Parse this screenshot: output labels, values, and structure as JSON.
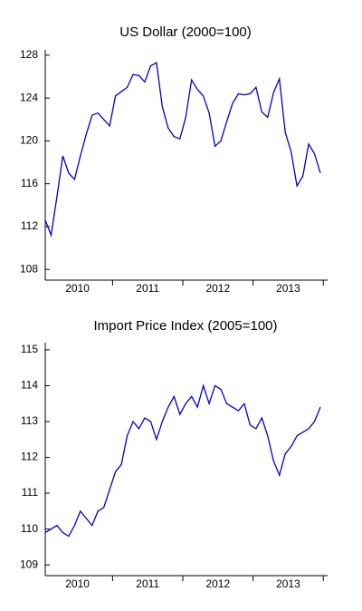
{
  "chart_data": [
    {
      "type": "line",
      "title": "US Dollar (2000=100)",
      "categories": [
        null,
        null,
        null,
        null,
        null,
        null,
        "2010",
        null,
        null,
        null,
        null,
        null,
        null,
        null,
        null,
        null,
        null,
        null,
        "2011",
        null,
        null,
        null,
        null,
        null,
        null,
        null,
        null,
        null,
        null,
        null,
        "2012",
        null,
        null,
        null,
        null,
        null,
        null,
        null,
        null,
        null,
        null,
        null,
        "2013",
        null,
        null,
        null,
        null,
        null
      ],
      "series": [
        {
          "name": "US Dollar",
          "color": "#0000cc",
          "values": [
            112.6,
            111.2,
            114.8,
            118.6,
            117.0,
            116.4,
            118.6,
            120.6,
            122.4,
            122.6,
            122.0,
            121.4,
            124.2,
            124.6,
            125.0,
            126.2,
            126.1,
            125.5,
            127.0,
            127.3,
            123.2,
            121.2,
            120.4,
            120.2,
            122.2,
            125.7,
            124.8,
            124.2,
            122.6,
            119.5,
            120.0,
            121.8,
            123.5,
            124.4,
            124.3,
            124.4,
            125.0,
            122.7,
            122.2,
            124.5,
            125.8,
            120.8,
            119.0,
            115.8,
            116.7,
            119.7,
            118.8,
            117.0
          ]
        }
      ],
      "ylim": [
        107,
        128.5
      ],
      "yticks": [
        108,
        112,
        116,
        120,
        124,
        128
      ]
    },
    {
      "type": "line",
      "title": "Import Price Index (2005=100)",
      "categories": [
        null,
        null,
        null,
        null,
        null,
        null,
        "2010",
        null,
        null,
        null,
        null,
        null,
        null,
        null,
        null,
        null,
        null,
        null,
        "2011",
        null,
        null,
        null,
        null,
        null,
        null,
        null,
        null,
        null,
        null,
        null,
        "2012",
        null,
        null,
        null,
        null,
        null,
        null,
        null,
        null,
        null,
        null,
        null,
        "2013",
        null,
        null,
        null,
        null,
        null
      ],
      "series": [
        {
          "name": "Import Price Index",
          "color": "#0000cc",
          "values": [
            109.9,
            110.0,
            110.1,
            109.9,
            109.8,
            110.1,
            110.5,
            110.3,
            110.1,
            110.5,
            110.6,
            111.1,
            111.6,
            111.8,
            112.6,
            113.0,
            112.8,
            113.1,
            113.0,
            112.5,
            113.0,
            113.4,
            113.7,
            113.2,
            113.5,
            113.7,
            113.4,
            114.0,
            113.5,
            114.0,
            113.9,
            113.5,
            113.4,
            113.3,
            113.5,
            112.9,
            112.8,
            113.1,
            112.6,
            111.9,
            111.5,
            112.1,
            112.3,
            112.6,
            112.7,
            112.8,
            113.0,
            113.4
          ]
        }
      ],
      "ylim": [
        108.7,
        115.2
      ],
      "yticks": [
        109,
        110,
        111,
        112,
        113,
        114,
        115
      ]
    }
  ]
}
